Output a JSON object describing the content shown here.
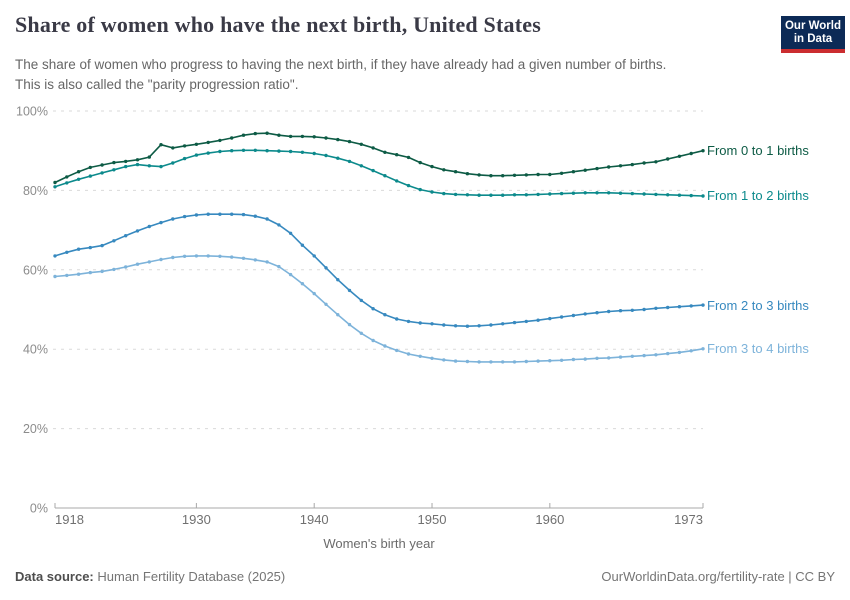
{
  "header": {
    "logo": {
      "line1": "Our World",
      "line2": "in Data"
    }
  },
  "subtitle": {
    "line1": "The share of women who progress to having the next birth, if they have already had a given number of births.",
    "line2": "This is also called the \"parity progression ratio\"."
  },
  "footer": {
    "source_label": "Data source:",
    "source_value": "Human Fertility Database (2025)",
    "link": "OurWorldinData.org/fertility-rate | CC BY"
  },
  "colors": {
    "title_text": "#3a3a46",
    "subtitle_text": "#666666",
    "grid": "#dadada",
    "axis": "#a8a8a8",
    "y_tick_text": "#8c8c8c",
    "x_tick_text": "#707070",
    "logo_bg": "#0c2a56",
    "logo_stripe": "#cb2d30"
  },
  "chart_data": {
    "type": "line",
    "title": "Share of women who have the next birth, United States",
    "xlabel": "Women's birth year",
    "ylabel": "",
    "xlim": [
      1918,
      1973
    ],
    "ylim": [
      0,
      100
    ],
    "x_ticks": [
      1918,
      1930,
      1940,
      1950,
      1960,
      1973
    ],
    "y_ticks": [
      0,
      20,
      40,
      60,
      80,
      100
    ],
    "y_tick_suffix": "%",
    "grid": "horizontal-dashed",
    "legend_position": "line-end-labels",
    "x": [
      1918,
      1919,
      1920,
      1921,
      1922,
      1923,
      1924,
      1925,
      1926,
      1927,
      1928,
      1929,
      1930,
      1931,
      1932,
      1933,
      1934,
      1935,
      1936,
      1937,
      1938,
      1939,
      1940,
      1941,
      1942,
      1943,
      1944,
      1945,
      1946,
      1947,
      1948,
      1949,
      1950,
      1951,
      1952,
      1953,
      1954,
      1955,
      1956,
      1957,
      1958,
      1959,
      1960,
      1961,
      1962,
      1963,
      1964,
      1965,
      1966,
      1967,
      1968,
      1969,
      1970,
      1971,
      1972,
      1973
    ],
    "series": [
      {
        "name": "From 0 to 1 births",
        "color": "#0d5b45",
        "values": [
          82.0,
          83.4,
          84.7,
          85.8,
          86.4,
          87.0,
          87.3,
          87.7,
          88.4,
          91.5,
          90.7,
          91.2,
          91.6,
          92.1,
          92.6,
          93.2,
          93.9,
          94.3,
          94.4,
          93.9,
          93.6,
          93.6,
          93.5,
          93.2,
          92.8,
          92.3,
          91.6,
          90.7,
          89.6,
          89.0,
          88.3,
          87.0,
          86.0,
          85.2,
          84.7,
          84.2,
          83.9,
          83.7,
          83.7,
          83.8,
          83.9,
          84.0,
          84.0,
          84.3,
          84.7,
          85.1,
          85.5,
          85.9,
          86.2,
          86.5,
          86.9,
          87.2,
          87.9,
          88.6,
          89.3,
          90.0
        ]
      },
      {
        "name": "From 1 to 2 births",
        "color": "#0c8a8c",
        "values": [
          80.9,
          81.9,
          82.8,
          83.6,
          84.4,
          85.2,
          86.0,
          86.5,
          86.2,
          86.0,
          86.9,
          88.0,
          88.9,
          89.4,
          89.8,
          90.0,
          90.1,
          90.1,
          90.0,
          89.9,
          89.8,
          89.6,
          89.3,
          88.8,
          88.1,
          87.3,
          86.2,
          85.0,
          83.7,
          82.4,
          81.2,
          80.2,
          79.6,
          79.2,
          79.0,
          78.9,
          78.8,
          78.8,
          78.8,
          78.9,
          78.9,
          79.0,
          79.1,
          79.2,
          79.3,
          79.4,
          79.4,
          79.4,
          79.3,
          79.2,
          79.1,
          79.0,
          78.9,
          78.8,
          78.7,
          78.6
        ]
      },
      {
        "name": "From 2 to 3 births",
        "color": "#3789bf",
        "values": [
          63.5,
          64.4,
          65.2,
          65.6,
          66.1,
          67.3,
          68.6,
          69.8,
          70.9,
          71.9,
          72.8,
          73.4,
          73.8,
          74.0,
          74.0,
          74.0,
          73.9,
          73.5,
          72.8,
          71.3,
          69.2,
          66.2,
          63.5,
          60.5,
          57.5,
          54.8,
          52.3,
          50.2,
          48.7,
          47.6,
          47.0,
          46.6,
          46.4,
          46.1,
          45.9,
          45.8,
          45.9,
          46.1,
          46.4,
          46.7,
          47.0,
          47.3,
          47.7,
          48.1,
          48.5,
          48.9,
          49.2,
          49.5,
          49.7,
          49.8,
          50.0,
          50.3,
          50.5,
          50.7,
          50.9,
          51.1
        ]
      },
      {
        "name": "From 3 to 4 births",
        "color": "#7db3da",
        "values": [
          58.3,
          58.6,
          58.9,
          59.3,
          59.6,
          60.1,
          60.7,
          61.4,
          62.0,
          62.6,
          63.1,
          63.4,
          63.5,
          63.5,
          63.4,
          63.2,
          62.9,
          62.5,
          62.0,
          60.8,
          58.8,
          56.5,
          54.0,
          51.3,
          48.7,
          46.2,
          44.0,
          42.2,
          40.8,
          39.7,
          38.8,
          38.2,
          37.7,
          37.3,
          37.0,
          36.9,
          36.8,
          36.8,
          36.8,
          36.8,
          36.9,
          37.0,
          37.1,
          37.2,
          37.4,
          37.5,
          37.7,
          37.8,
          38.0,
          38.2,
          38.4,
          38.6,
          38.9,
          39.2,
          39.6,
          40.1
        ]
      }
    ]
  }
}
